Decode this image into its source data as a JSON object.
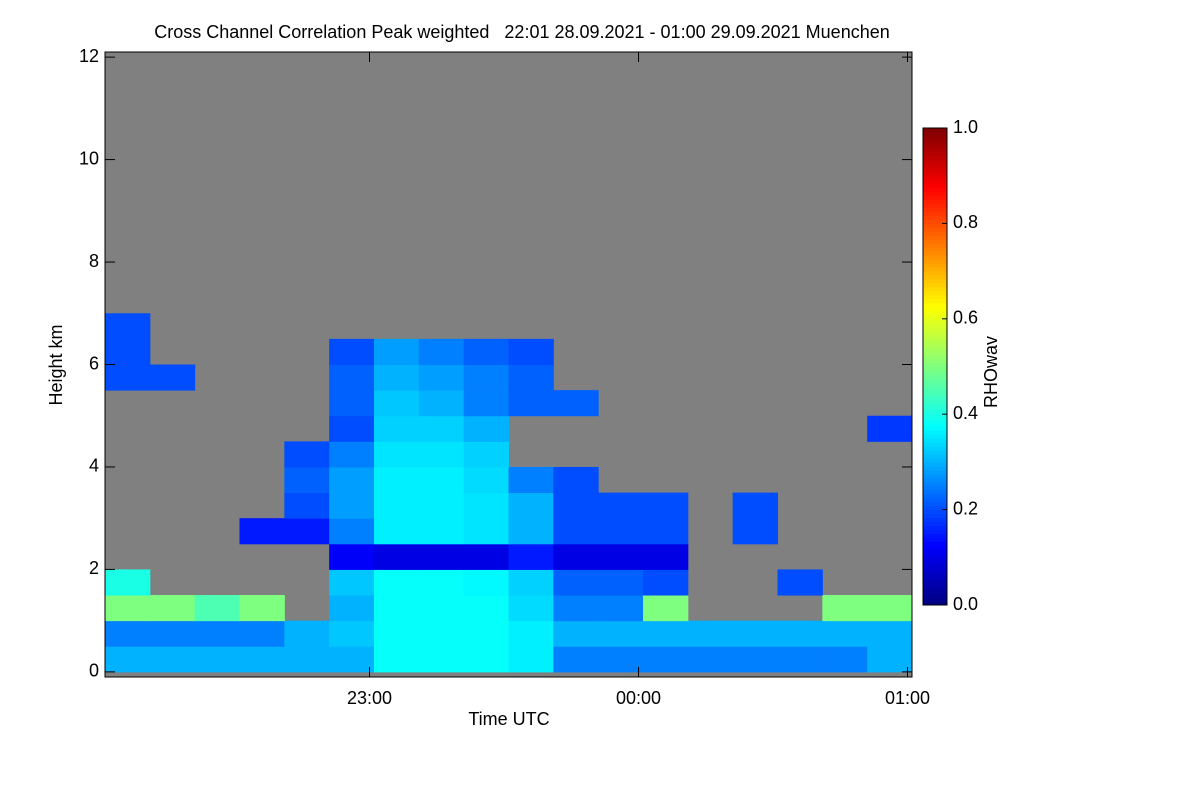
{
  "chart_data": {
    "type": "heatmap",
    "title": "Cross Channel Correlation Peak weighted   22:01 28.09.2021 - 01:00 29.09.2021 Muenchen",
    "x_label": "Time UTC",
    "y_label": "Height km",
    "colorbar_label": "RHOwav",
    "x": [
      6,
      16,
      26,
      36,
      46,
      56,
      66,
      76,
      86,
      96,
      106,
      116,
      126,
      136,
      146,
      156,
      166,
      176
    ],
    "y": [
      0.25,
      0.75,
      1.25,
      1.75,
      2.25,
      2.75,
      3.25,
      3.75,
      4.25,
      4.75,
      5.25,
      5.75,
      6.25,
      6.75
    ],
    "values": [
      [
        0.3,
        0.3,
        0.3,
        0.3,
        0.3,
        0.3,
        0.38,
        0.38,
        0.38,
        0.36,
        0.25,
        0.25,
        0.25,
        0.25,
        0.25,
        0.25,
        0.25,
        0.3
      ],
      [
        0.25,
        0.25,
        0.25,
        0.25,
        0.3,
        0.32,
        0.38,
        0.38,
        0.38,
        0.36,
        0.3,
        0.3,
        0.3,
        0.3,
        0.3,
        0.3,
        0.3,
        0.3
      ],
      [
        0.5,
        0.5,
        0.45,
        0.5,
        null,
        0.3,
        0.38,
        0.38,
        0.38,
        0.34,
        0.25,
        0.25,
        0.5,
        null,
        null,
        null,
        0.5,
        0.5
      ],
      [
        0.4,
        null,
        null,
        null,
        null,
        0.32,
        0.38,
        0.38,
        0.37,
        0.33,
        0.22,
        0.22,
        0.2,
        null,
        null,
        0.2,
        null,
        null
      ],
      [
        null,
        null,
        null,
        null,
        null,
        0.12,
        0.1,
        0.1,
        0.1,
        0.15,
        0.1,
        0.1,
        0.1,
        null,
        null,
        null,
        null,
        null
      ],
      [
        null,
        null,
        null,
        0.15,
        0.15,
        0.25,
        0.36,
        0.36,
        0.35,
        0.3,
        0.2,
        0.2,
        0.2,
        null,
        0.2,
        null,
        null,
        null
      ],
      [
        null,
        null,
        null,
        null,
        0.2,
        0.28,
        0.36,
        0.36,
        0.35,
        0.3,
        0.2,
        0.2,
        0.2,
        null,
        0.2,
        null,
        null,
        null
      ],
      [
        null,
        null,
        null,
        null,
        0.22,
        0.28,
        0.36,
        0.36,
        0.34,
        0.25,
        0.2,
        null,
        null,
        null,
        null,
        null,
        null,
        null
      ],
      [
        null,
        null,
        null,
        null,
        0.2,
        0.25,
        0.35,
        0.35,
        0.33,
        null,
        null,
        null,
        null,
        null,
        null,
        null,
        null,
        null
      ],
      [
        null,
        null,
        null,
        null,
        null,
        0.2,
        0.33,
        0.33,
        0.3,
        null,
        null,
        null,
        null,
        null,
        null,
        null,
        null,
        0.18
      ],
      [
        null,
        null,
        null,
        null,
        null,
        0.22,
        0.32,
        0.3,
        0.25,
        0.22,
        0.22,
        null,
        null,
        null,
        null,
        null,
        null,
        null
      ],
      [
        0.2,
        0.2,
        null,
        null,
        null,
        0.22,
        0.3,
        0.28,
        0.25,
        0.22,
        null,
        null,
        null,
        null,
        null,
        null,
        null,
        null
      ],
      [
        0.2,
        null,
        null,
        null,
        null,
        0.2,
        0.28,
        0.25,
        0.22,
        0.2,
        null,
        null,
        null,
        null,
        null,
        null,
        null,
        null
      ],
      [
        0.2,
        null,
        null,
        null,
        null,
        null,
        null,
        null,
        null,
        null,
        null,
        null,
        null,
        null,
        null,
        null,
        null,
        null
      ]
    ],
    "xlim": [
      1,
      181
    ],
    "xticks": [
      {
        "value": 60,
        "label": "23:00"
      },
      {
        "value": 120,
        "label": "00:00"
      },
      {
        "value": 180,
        "label": "01:00"
      }
    ],
    "ylim": [
      -0.1,
      12.1
    ],
    "yticks": [
      0,
      2,
      4,
      6,
      8,
      10,
      12
    ],
    "zlim": [
      0,
      1
    ],
    "zticks": [
      {
        "value": 0,
        "label": "0.0"
      },
      {
        "value": 0.2,
        "label": "0.2"
      },
      {
        "value": 0.4,
        "label": "0.4"
      },
      {
        "value": 0.6,
        "label": "0.6"
      },
      {
        "value": 0.8,
        "label": "0.8"
      },
      {
        "value": 1,
        "label": "1.0"
      }
    ],
    "colormap": [
      "#00007f",
      "#0000ff",
      "#007fff",
      "#00ffff",
      "#7fff7f",
      "#ffff00",
      "#ff7f00",
      "#ff0000",
      "#7f0000"
    ],
    "missing_color": "#808080"
  }
}
